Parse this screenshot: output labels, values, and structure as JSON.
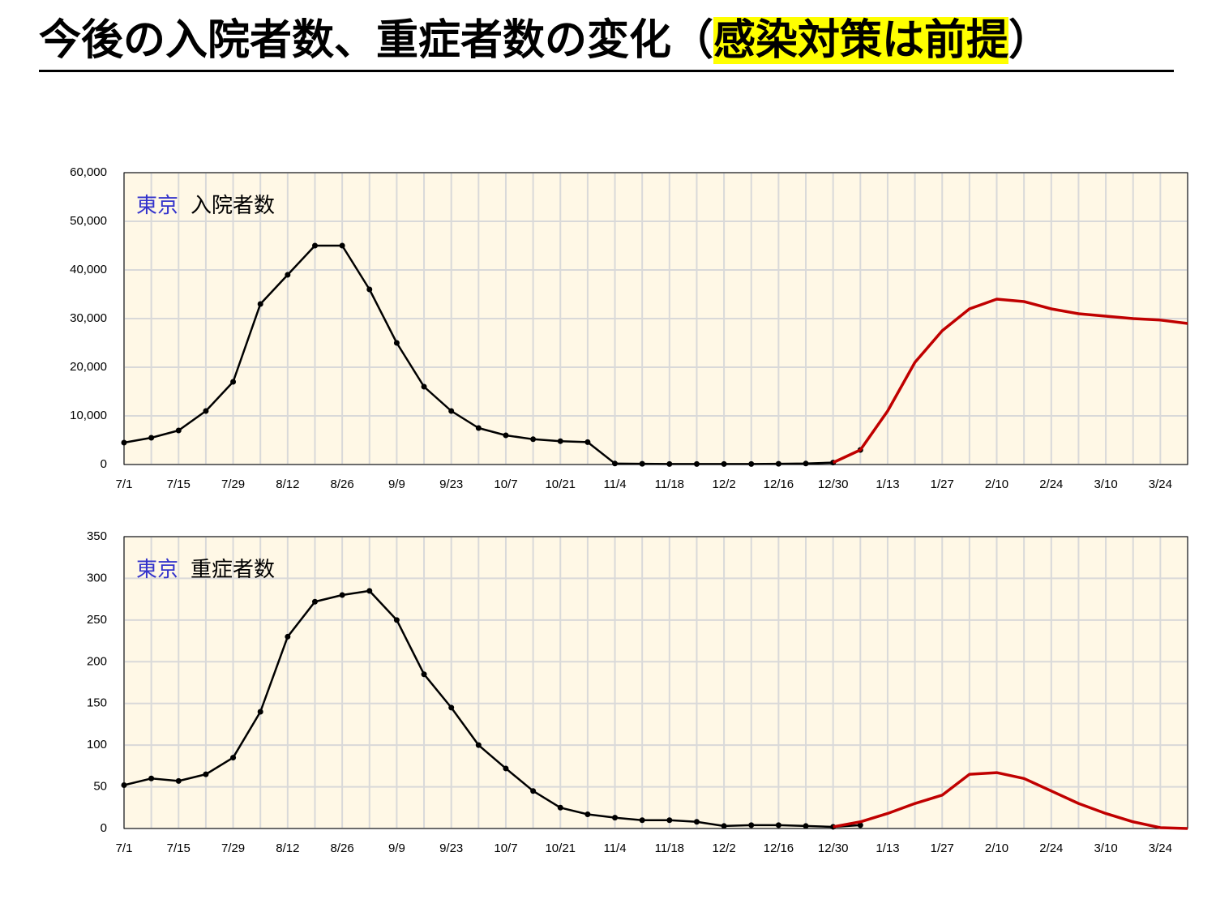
{
  "header": {
    "title_prefix": "今後の入院者数、重症者数の変化（",
    "title_highlight": "感染対策は前提",
    "title_suffix": "）"
  },
  "chart_data": [
    {
      "type": "line",
      "region": "東京",
      "label": "入院者数",
      "categories": [
        "7/1",
        null,
        "7/15",
        null,
        "7/29",
        null,
        "8/12",
        null,
        "8/26",
        null,
        "9/9",
        null,
        "9/23",
        null,
        "10/7",
        null,
        "10/21",
        null,
        "11/4",
        null,
        "11/18",
        null,
        "12/2",
        null,
        "12/16",
        null,
        "12/30",
        null,
        "1/13",
        null,
        "1/27",
        null,
        "2/10",
        null,
        "2/24",
        null,
        "3/10",
        null,
        "3/24",
        null
      ],
      "series": [
        {
          "color": "#000000",
          "markers": true,
          "values": [
            4500,
            5500,
            7000,
            11000,
            17000,
            33000,
            39000,
            45000,
            45000,
            36000,
            25000,
            16000,
            11000,
            7500,
            6000,
            5200,
            4800,
            4600,
            200,
            150,
            100,
            100,
            100,
            100,
            150,
            200,
            400,
            3000,
            null,
            null,
            null,
            null,
            null,
            null,
            null,
            null,
            null,
            null,
            null,
            null
          ]
        },
        {
          "color": "#c00000",
          "markers": false,
          "values": [
            null,
            null,
            null,
            null,
            null,
            null,
            null,
            null,
            null,
            null,
            null,
            null,
            null,
            null,
            null,
            null,
            null,
            null,
            null,
            null,
            null,
            null,
            null,
            null,
            null,
            null,
            400,
            3000,
            11000,
            21000,
            27500,
            32000,
            34000,
            33500,
            32000,
            31000,
            30500,
            30000,
            29700,
            29000
          ]
        }
      ],
      "ylim": [
        0,
        60000
      ],
      "yticks": [
        0,
        {
          "value": 10000,
          "label": "10,000"
        },
        {
          "value": 20000,
          "label": "20,000"
        },
        {
          "value": 30000,
          "label": "30,000"
        },
        {
          "value": 40000,
          "label": "40,000"
        },
        {
          "value": 50000,
          "label": "50,000"
        },
        {
          "value": 60000,
          "label": "60,000"
        }
      ],
      "grid": true
    },
    {
      "type": "line",
      "region": "東京",
      "label": "重症者数",
      "categories": [
        "7/1",
        null,
        "7/15",
        null,
        "7/29",
        null,
        "8/12",
        null,
        "8/26",
        null,
        "9/9",
        null,
        "9/23",
        null,
        "10/7",
        null,
        "10/21",
        null,
        "11/4",
        null,
        "11/18",
        null,
        "12/2",
        null,
        "12/16",
        null,
        "12/30",
        null,
        "1/13",
        null,
        "1/27",
        null,
        "2/10",
        null,
        "2/24",
        null,
        "3/10",
        null,
        "3/24",
        null
      ],
      "series": [
        {
          "color": "#000000",
          "markers": true,
          "values": [
            52,
            60,
            57,
            65,
            85,
            140,
            230,
            272,
            280,
            285,
            250,
            185,
            145,
            100,
            72,
            45,
            25,
            17,
            13,
            10,
            10,
            8,
            3,
            4,
            4,
            3,
            2,
            4,
            null,
            null,
            null,
            null,
            null,
            null,
            null,
            null,
            null,
            null,
            null,
            null
          ]
        },
        {
          "color": "#c00000",
          "markers": false,
          "values": [
            null,
            null,
            null,
            null,
            null,
            null,
            null,
            null,
            null,
            null,
            null,
            null,
            null,
            null,
            null,
            null,
            null,
            null,
            null,
            null,
            null,
            null,
            null,
            null,
            null,
            null,
            2,
            8,
            18,
            30,
            40,
            65,
            67,
            60,
            45,
            30,
            18,
            8,
            1,
            0
          ]
        }
      ],
      "ylim": [
        0,
        350
      ],
      "yticks": [
        0,
        50,
        100,
        150,
        200,
        250,
        300,
        350
      ],
      "grid": true
    }
  ]
}
